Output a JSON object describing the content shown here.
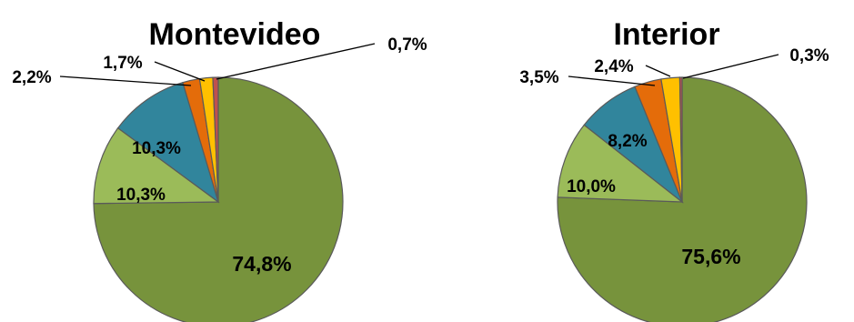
{
  "chart_data": [
    {
      "type": "pie",
      "title": "Montevideo",
      "slices": [
        {
          "label": "74,8%",
          "value": 74.8,
          "color": "#77933c"
        },
        {
          "label": "10,3%",
          "value": 10.3,
          "color": "#9bbb59"
        },
        {
          "label": "10,3%",
          "value": 10.3,
          "color": "#31859c"
        },
        {
          "label": "2,2%",
          "value": 2.2,
          "color": "#e46c0a"
        },
        {
          "label": "1,7%",
          "value": 1.7,
          "color": "#ffc000"
        },
        {
          "label": "0,7%",
          "value": 0.7,
          "color": "#c0504d"
        }
      ]
    },
    {
      "type": "pie",
      "title": "Interior",
      "slices": [
        {
          "label": "75,6%",
          "value": 75.6,
          "color": "#77933c"
        },
        {
          "label": "10,0%",
          "value": 10.0,
          "color": "#9bbb59"
        },
        {
          "label": "8,2%",
          "value": 8.2,
          "color": "#31859c"
        },
        {
          "label": "3,5%",
          "value": 3.5,
          "color": "#e46c0a"
        },
        {
          "label": "2,4%",
          "value": 2.4,
          "color": "#ffc000"
        },
        {
          "label": "0,3%",
          "value": 0.3,
          "color": "#c0504d"
        }
      ]
    }
  ]
}
